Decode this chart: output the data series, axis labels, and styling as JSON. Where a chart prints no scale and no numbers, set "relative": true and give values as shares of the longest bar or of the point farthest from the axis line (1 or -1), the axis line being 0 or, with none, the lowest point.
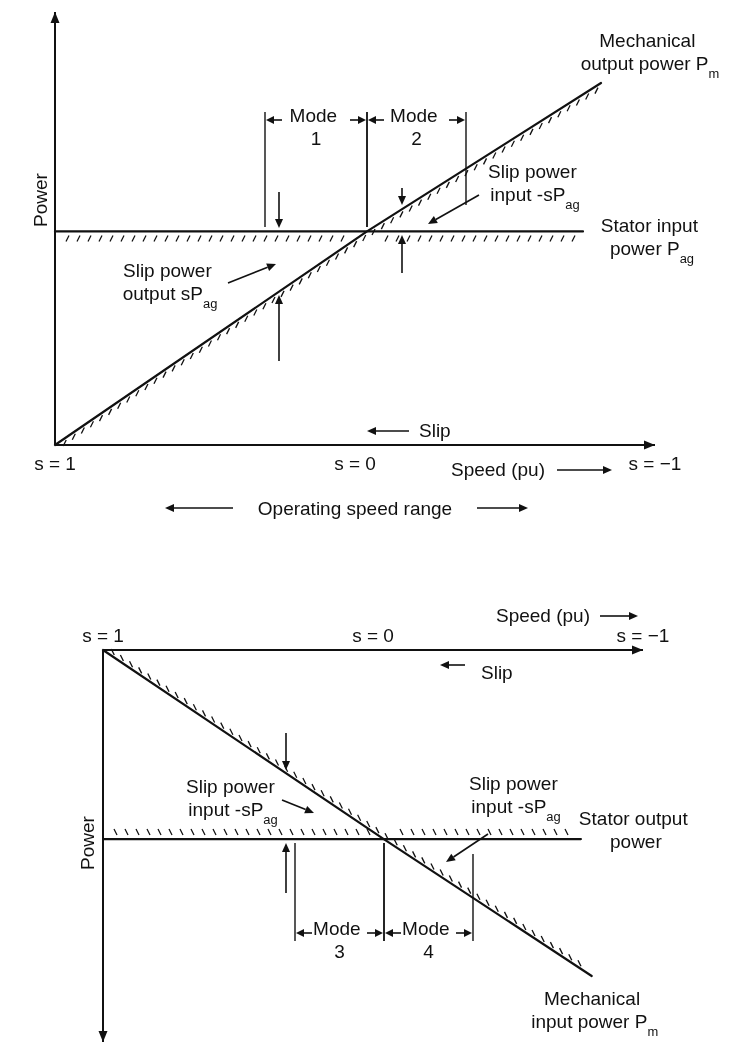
{
  "chart_data": [
    {
      "type": "line",
      "xlabel": "Speed (pu)",
      "ylabel": "Power",
      "relative": true,
      "xlim": [
        1,
        -1
      ],
      "xticks": [
        {
          "value": 1,
          "label": "s = 1"
        },
        {
          "value": 0,
          "label": "s = 0"
        },
        {
          "value": -1,
          "label": "s = −1"
        }
      ],
      "series": [
        {
          "name": "Mechanical output power P$_{m}$",
          "color": "#111111",
          "x": [
            1,
            -0.04,
            -0.82
          ],
          "values": [
            0,
            0.59,
            1
          ]
        },
        {
          "name": "Stator input power P$_{ag}$",
          "color": "#111111",
          "x": [
            1,
            -0.76
          ],
          "values": [
            0.59,
            0.59
          ]
        }
      ],
      "annotations": [
        "Mode 1",
        "Mode 2",
        "Slip power output sP$_{ag}$",
        "Slip power input -sP$_{ag}$",
        "Slip",
        "Operating speed range"
      ]
    },
    {
      "type": "line",
      "xlabel": "Speed (pu)",
      "ylabel": "Power",
      "relative": true,
      "xlim": [
        1,
        -1
      ],
      "xticks": [
        {
          "value": 1,
          "label": "s = 1"
        },
        {
          "value": 0,
          "label": "s = 0"
        },
        {
          "value": -1,
          "label": "s = −1"
        }
      ],
      "series": [
        {
          "name": "Mechanical input power P$_{m}$",
          "color": "#111111",
          "x": [
            1,
            -0.04,
            -0.81
          ],
          "values": [
            0,
            -0.58,
            -1
          ]
        },
        {
          "name": "Stator output power",
          "color": "#111111",
          "x": [
            1,
            -0.77
          ],
          "values": [
            -0.58,
            -0.58
          ]
        }
      ],
      "annotations": [
        "Mode 3",
        "Mode 4",
        "Slip power input -sP$_{ag}$",
        "Slip power input -sP$_{ag}$",
        "Slip"
      ]
    }
  ]
}
